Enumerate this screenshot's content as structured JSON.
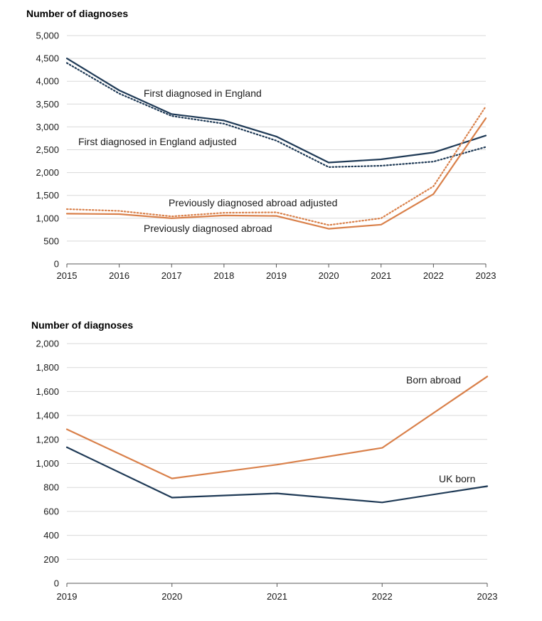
{
  "colors": {
    "navy": "#1f3a56",
    "orange": "#d9804a",
    "grid": "#d9d9d9",
    "axis": "#595959"
  },
  "chart_data": [
    {
      "type": "line",
      "title": "",
      "ylabel": "Number of diagnoses",
      "xlabel": "",
      "categories": [
        "2015",
        "2016",
        "2017",
        "2018",
        "2019",
        "2020",
        "2021",
        "2022",
        "2023"
      ],
      "ylim": [
        0,
        5000
      ],
      "yticks": [
        0,
        500,
        1000,
        1500,
        2000,
        2500,
        3000,
        3500,
        4000,
        4500,
        5000
      ],
      "ytick_labels": [
        "0",
        "500",
        "1,000",
        "1,500",
        "2,000",
        "2,500",
        "3,000",
        "3,500",
        "4,000",
        "4,500",
        "5,000"
      ],
      "grid": true,
      "series": [
        {
          "name": "First diagnosed in England",
          "color": "#1f3a56",
          "dashed": false,
          "values": [
            4500,
            3800,
            3280,
            3140,
            2790,
            2220,
            2290,
            2440,
            2810
          ]
        },
        {
          "name": "First diagnosed in England adjusted",
          "color": "#1f3a56",
          "dashed": true,
          "values": [
            4400,
            3730,
            3240,
            3070,
            2700,
            2120,
            2150,
            2240,
            2560
          ]
        },
        {
          "name": "Previously diagnosed abroad adjusted",
          "color": "#d9804a",
          "dashed": true,
          "values": [
            1200,
            1160,
            1040,
            1120,
            1130,
            850,
            1000,
            1700,
            3450
          ]
        },
        {
          "name": "Previously diagnosed abroad",
          "color": "#d9804a",
          "dashed": false,
          "values": [
            1100,
            1090,
            1000,
            1060,
            1050,
            770,
            860,
            1530,
            3190
          ]
        }
      ],
      "annotations": [
        "First diagnosed in England",
        "First diagnosed in England adjusted",
        "Previously diagnosed abroad adjusted",
        "Previously diagnosed abroad"
      ]
    },
    {
      "type": "line",
      "title": "",
      "ylabel": "Number of diagnoses",
      "xlabel": "",
      "categories": [
        "2019",
        "2020",
        "2021",
        "2022",
        "2023"
      ],
      "ylim": [
        0,
        2000
      ],
      "yticks": [
        0,
        200,
        400,
        600,
        800,
        1000,
        1200,
        1400,
        1600,
        1800,
        2000
      ],
      "ytick_labels": [
        "0",
        "200",
        "400",
        "600",
        "800",
        "1,000",
        "1,200",
        "1,400",
        "1,600",
        "1,800",
        "2,000"
      ],
      "grid": true,
      "series": [
        {
          "name": "Born abroad",
          "color": "#d9804a",
          "dashed": false,
          "values": [
            1285,
            875,
            990,
            1130,
            1725
          ]
        },
        {
          "name": "UK born",
          "color": "#1f3a56",
          "dashed": false,
          "values": [
            1135,
            715,
            750,
            675,
            810
          ]
        }
      ],
      "annotations": [
        "Born abroad",
        "UK born"
      ]
    }
  ]
}
